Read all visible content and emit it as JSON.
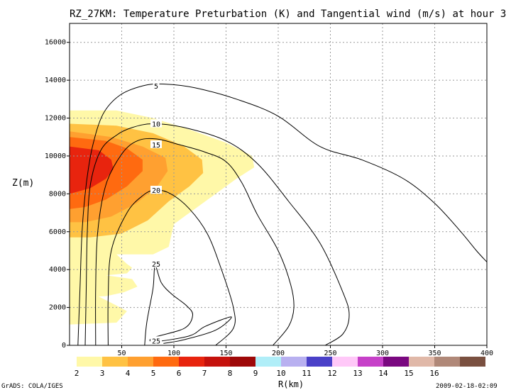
{
  "chart_data": {
    "type": "contour",
    "title": "RZ_27KM: Temperature Preturbation (K) and Tangential wind (m/s) at hour 3",
    "xlabel": "R(km)",
    "ylabel": "Z(m)",
    "xlim": [
      0,
      400
    ],
    "ylim": [
      0,
      17000
    ],
    "x_ticks": [
      50,
      100,
      150,
      200,
      250,
      300,
      350,
      400
    ],
    "y_ticks": [
      0,
      2000,
      4000,
      6000,
      8000,
      10000,
      12000,
      14000,
      16000
    ],
    "grid": true,
    "shaded_field": {
      "name": "Temperature Preturbation (K)",
      "colorbar_labels": [
        "2",
        "3",
        "4",
        "5",
        "6",
        "7",
        "8",
        "9",
        "10",
        "11",
        "12",
        "13",
        "14",
        "15",
        "16"
      ],
      "colorbar_colors": [
        "#fff8a8",
        "#ffc243",
        "#ffa030",
        "#ff6a10",
        "#e8240e",
        "#c5110c",
        "#9e0808",
        "#b0eef8",
        "#b8b0f0",
        "#4a40c8",
        "#ffc8f8",
        "#c640c8",
        "#7a0880",
        "#e0b8a8",
        "#b08878",
        "#7a5040"
      ],
      "regions": [
        {
          "level": 2,
          "polygon": [
            [
              0,
              12400
            ],
            [
              45,
              12400
            ],
            [
              80,
              12000
            ],
            [
              115,
              11400
            ],
            [
              150,
              10700
            ],
            [
              175,
              10000
            ],
            [
              177,
              9400
            ],
            [
              160,
              8800
            ],
            [
              140,
              8000
            ],
            [
              120,
              7200
            ],
            [
              100,
              6400
            ],
            [
              95,
              5200
            ],
            [
              80,
              4800
            ],
            [
              45,
              4800
            ],
            [
              55,
              4300
            ],
            [
              60,
              4100
            ],
            [
              55,
              3800
            ],
            [
              35,
              3700
            ],
            [
              60,
              3500
            ],
            [
              65,
              3100
            ],
            [
              52,
              2800
            ],
            [
              35,
              2600
            ],
            [
              0,
              2500
            ]
          ]
        },
        {
          "level": 2,
          "polygon": [
            [
              0,
              3200
            ],
            [
              20,
              2800
            ],
            [
              45,
              2100
            ],
            [
              55,
              1800
            ],
            [
              45,
              1200
            ],
            [
              0,
              1100
            ]
          ]
        },
        {
          "level": 3,
          "polygon": [
            [
              0,
              11700
            ],
            [
              45,
              11600
            ],
            [
              80,
              11200
            ],
            [
              110,
              10500
            ],
            [
              127,
              9800
            ],
            [
              128,
              9100
            ],
            [
              115,
              8400
            ],
            [
              95,
              7600
            ],
            [
              75,
              6600
            ],
            [
              50,
              5900
            ],
            [
              20,
              5700
            ],
            [
              0,
              5700
            ]
          ]
        },
        {
          "level": 4,
          "polygon": [
            [
              0,
              11300
            ],
            [
              40,
              11000
            ],
            [
              70,
              10500
            ],
            [
              92,
              9900
            ],
            [
              94,
              9200
            ],
            [
              84,
              8400
            ],
            [
              64,
              7500
            ],
            [
              40,
              6800
            ],
            [
              15,
              6500
            ],
            [
              0,
              6500
            ]
          ]
        },
        {
          "level": 5,
          "polygon": [
            [
              0,
              11000
            ],
            [
              35,
              10800
            ],
            [
              55,
              10400
            ],
            [
              70,
              9800
            ],
            [
              70,
              9200
            ],
            [
              55,
              8400
            ],
            [
              35,
              7700
            ],
            [
              15,
              7300
            ],
            [
              0,
              7200
            ]
          ]
        },
        {
          "level": 6,
          "polygon": [
            [
              0,
              10500
            ],
            [
              28,
              10300
            ],
            [
              40,
              9800
            ],
            [
              42,
              9300
            ],
            [
              35,
              8800
            ],
            [
              20,
              8300
            ],
            [
              0,
              8000
            ]
          ]
        }
      ]
    },
    "contour_field": {
      "name": "Tangential wind (m/s)",
      "levels": [
        5,
        10,
        15,
        20,
        25
      ],
      "contours": [
        {
          "level": 5,
          "points": [
            [
              8,
              0
            ],
            [
              10,
              3000
            ],
            [
              12,
              6000
            ],
            [
              16,
              8500
            ],
            [
              22,
              10500
            ],
            [
              32,
              12200
            ],
            [
              48,
              13200
            ],
            [
              70,
              13700
            ],
            [
              90,
              13800
            ],
            [
              120,
              13600
            ],
            [
              160,
              13000
            ],
            [
              200,
              12100
            ],
            [
              240,
              10500
            ],
            [
              280,
              9800
            ],
            [
              320,
              8800
            ],
            [
              350,
              7500
            ],
            [
              375,
              6000
            ],
            [
              390,
              5000
            ],
            [
              400,
              4400
            ]
          ]
        },
        {
          "level": 10,
          "points": [
            [
              15,
              0
            ],
            [
              16,
              3000
            ],
            [
              17,
              6000
            ],
            [
              20,
              8500
            ],
            [
              30,
              10300
            ],
            [
              45,
              11100
            ],
            [
              60,
              11500
            ],
            [
              80,
              11700
            ],
            [
              110,
              11500
            ],
            [
              150,
              10800
            ],
            [
              180,
              9600
            ],
            [
              210,
              7600
            ],
            [
              240,
              5400
            ],
            [
              262,
              2800
            ],
            [
              268,
              1600
            ],
            [
              262,
              600
            ],
            [
              245,
              0
            ]
          ]
        },
        {
          "level": 15,
          "points": [
            [
              25,
              0
            ],
            [
              25,
              3000
            ],
            [
              27,
              6000
            ],
            [
              35,
              8500
            ],
            [
              50,
              10100
            ],
            [
              65,
              10800
            ],
            [
              83,
              10900
            ],
            [
              105,
              10600
            ],
            [
              130,
              10200
            ],
            [
              150,
              9700
            ],
            [
              165,
              8600
            ],
            [
              180,
              6900
            ],
            [
              200,
              5000
            ],
            [
              212,
              3200
            ],
            [
              215,
              2000
            ],
            [
              210,
              1000
            ],
            [
              195,
              0
            ]
          ]
        },
        {
          "level": 20,
          "points": [
            [
              37,
              0
            ],
            [
              37,
              2500
            ],
            [
              40,
              5000
            ],
            [
              55,
              7000
            ],
            [
              70,
              7900
            ],
            [
              82,
              8200
            ],
            [
              97,
              8000
            ],
            [
              115,
              7200
            ],
            [
              132,
              5900
            ],
            [
              145,
              4100
            ],
            [
              157,
              2000
            ],
            [
              157,
              900
            ],
            [
              140,
              0
            ]
          ]
        },
        {
          "level": 25,
          "points": [
            [
              72,
              0
            ],
            [
              74,
              1200
            ],
            [
              80,
              3000
            ],
            [
              82,
              4200
            ],
            [
              88,
              3300
            ],
            [
              98,
              2700
            ],
            [
              112,
              2100
            ],
            [
              118,
              1600
            ],
            [
              110,
              900
            ],
            [
              80,
              400
            ],
            [
              82,
              200
            ],
            [
              115,
              500
            ],
            [
              130,
              1000
            ],
            [
              155,
              1500
            ],
            [
              140,
              800
            ],
            [
              110,
              300
            ],
            [
              90,
              100
            ]
          ]
        }
      ],
      "labels": [
        {
          "text": "5",
          "x": 83,
          "y": 13700
        },
        {
          "text": "10",
          "x": 83,
          "y": 11700
        },
        {
          "text": "15",
          "x": 83,
          "y": 10600
        },
        {
          "text": "20",
          "x": 83,
          "y": 8200
        },
        {
          "text": "25",
          "x": 83,
          "y": 4300
        },
        {
          "text": "25",
          "x": 83,
          "y": 250
        }
      ]
    }
  },
  "footer": {
    "left": "GrADS: COLA/IGES",
    "right": "2009-02-18-02:09"
  }
}
